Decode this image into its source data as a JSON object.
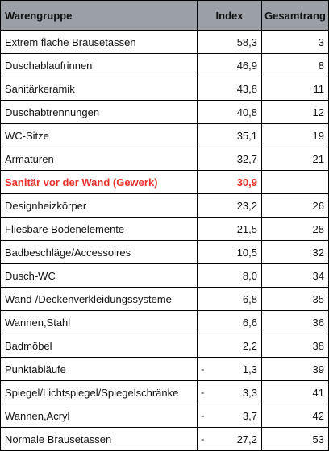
{
  "colors": {
    "header_bg": "#9aa0a6",
    "highlight_text": "#e8302a",
    "grid": "#000000"
  },
  "table": {
    "headers": {
      "name": "Warengruppe",
      "index": "Index",
      "rank": "Gesamtrang"
    },
    "rows": [
      {
        "name": "Extrem flache Brausetassen",
        "sign": "",
        "index": "58,3",
        "rank": "3",
        "highlight": false
      },
      {
        "name": "Duschablaufrinnen",
        "sign": "",
        "index": "46,9",
        "rank": "8",
        "highlight": false
      },
      {
        "name": "Sanitärkeramik",
        "sign": "",
        "index": "43,8",
        "rank": "11",
        "highlight": false
      },
      {
        "name": "Duschabtrennungen",
        "sign": "",
        "index": "40,8",
        "rank": "12",
        "highlight": false
      },
      {
        "name": "WC-Sitze",
        "sign": "",
        "index": "35,1",
        "rank": "19",
        "highlight": false
      },
      {
        "name": "Armaturen",
        "sign": "",
        "index": "32,7",
        "rank": "21",
        "highlight": false
      },
      {
        "name": "Sanitär vor der Wand (Gewerk)",
        "sign": "",
        "index": "30,9",
        "rank": "",
        "highlight": true
      },
      {
        "name": "Designheizkörper",
        "sign": "",
        "index": "23,2",
        "rank": "26",
        "highlight": false
      },
      {
        "name": "Fliesbare Bodenelemente",
        "sign": "",
        "index": "21,5",
        "rank": "28",
        "highlight": false
      },
      {
        "name": "Badbeschläge/Accessoires",
        "sign": "",
        "index": "10,5",
        "rank": "32",
        "highlight": false
      },
      {
        "name": "Dusch-WC",
        "sign": "",
        "index": "8,0",
        "rank": "34",
        "highlight": false
      },
      {
        "name": "Wand-/Deckenverkleidungssysteme",
        "sign": "",
        "index": "6,8",
        "rank": "35",
        "highlight": false
      },
      {
        "name": "Wannen,Stahl",
        "sign": "",
        "index": "6,6",
        "rank": "36",
        "highlight": false
      },
      {
        "name": "Badmöbel",
        "sign": "",
        "index": "2,2",
        "rank": "38",
        "highlight": false
      },
      {
        "name": "Punktabläufe",
        "sign": "-",
        "index": "1,3",
        "rank": "39",
        "highlight": false
      },
      {
        "name": "Spiegel/Lichtspiegel/Spiegelschränke",
        "sign": "-",
        "index": "3,3",
        "rank": "41",
        "highlight": false
      },
      {
        "name": "Wannen,Acryl",
        "sign": "-",
        "index": "3,7",
        "rank": "42",
        "highlight": false
      },
      {
        "name": "Normale Brausetassen",
        "sign": "-",
        "index": "27,2",
        "rank": "53",
        "highlight": false
      }
    ]
  }
}
